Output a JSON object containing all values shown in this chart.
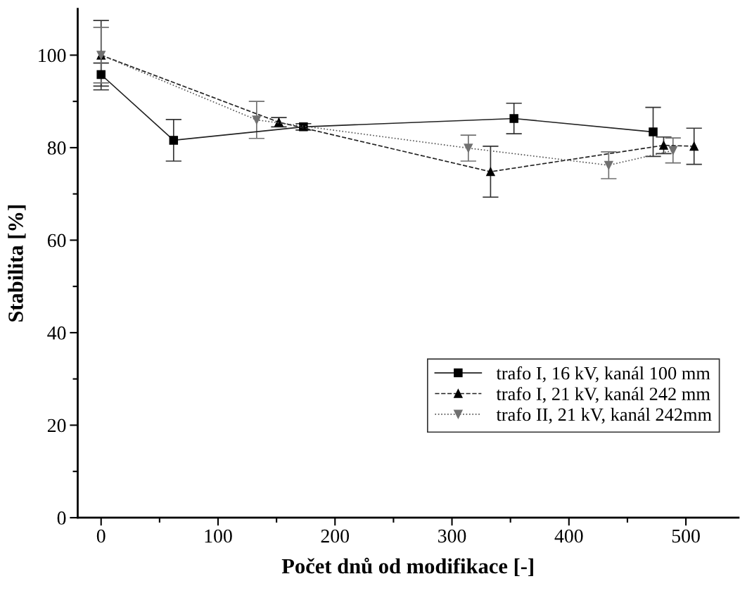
{
  "chart_data": {
    "type": "line",
    "xlabel": "Počet dnů od modifikace [-]",
    "ylabel": "Stabilita [%]",
    "xlim": [
      -20,
      545
    ],
    "ylim": [
      0,
      110
    ],
    "xticks": [
      0,
      {
        "value": 50,
        "label": null
      },
      100,
      {
        "value": 150,
        "label": null
      },
      200,
      {
        "value": 250,
        "label": null
      },
      300,
      {
        "value": 350,
        "label": null
      },
      400,
      {
        "value": 450,
        "label": null
      },
      500
    ],
    "yticks": [
      0,
      {
        "value": 10,
        "label": null
      },
      20,
      {
        "value": 30,
        "label": null
      },
      40,
      {
        "value": 50,
        "label": null
      },
      60,
      {
        "value": 70,
        "label": null
      },
      80,
      {
        "value": 90,
        "label": null
      },
      100
    ],
    "grid": false,
    "legend": "bottom right",
    "series": [
      {
        "name": "trafo I, 16 kV, kanál 100 mm",
        "color": "#000000",
        "marker": "square",
        "line_style": "solid",
        "x": [
          0,
          62,
          173,
          353,
          472
        ],
        "values": [
          95.8,
          81.6,
          84.5,
          86.3,
          83.4
        ],
        "errors": [
          2.5,
          4.5,
          0.7,
          3.3,
          5.3
        ]
      },
      {
        "name": "trafo I, 21 kV, kanál 242 mm",
        "color": "#000000",
        "marker": "triangle",
        "line_style": "dashed",
        "x": [
          0,
          152,
          333,
          481,
          507
        ],
        "values": [
          100,
          85.5,
          74.8,
          80.5,
          80.3
        ],
        "errors": [
          7.5,
          1,
          5.5,
          1.8,
          3.9
        ]
      },
      {
        "name": "trafo II, 21 kV, kanál 242mm",
        "color": "#707070",
        "marker": "triangle_down",
        "line_style": "dotted",
        "x": [
          0,
          133,
          314,
          434,
          489
        ],
        "values": [
          100,
          86.0,
          79.9,
          76.2,
          79.4
        ],
        "errors": [
          6,
          4,
          2.8,
          2.9,
          2.7
        ]
      }
    ]
  }
}
